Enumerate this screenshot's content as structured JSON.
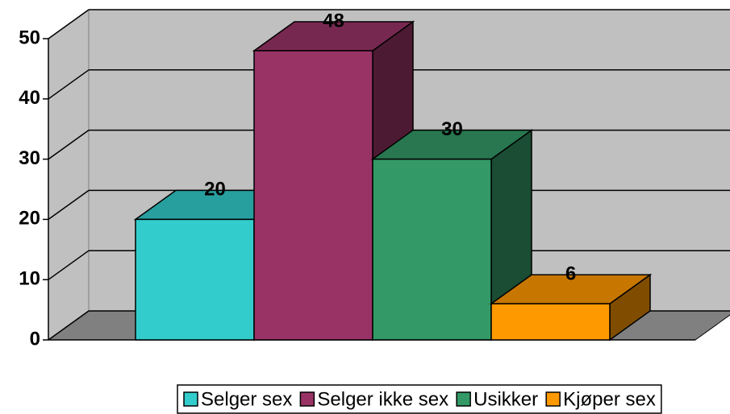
{
  "chart_data": {
    "type": "bar3d",
    "categories": [
      null
    ],
    "series": [
      {
        "name": "Selger sex",
        "color": "#33CCCC",
        "values": [
          20
        ]
      },
      {
        "name": "Selger ikke sex",
        "color": "#993366",
        "values": [
          48
        ]
      },
      {
        "name": "Usikker",
        "color": "#339966",
        "values": [
          30
        ]
      },
      {
        "name": "Kjøper sex",
        "color": "#FF9900",
        "values": [
          6
        ]
      }
    ],
    "ylim": [
      0,
      50
    ],
    "yticks": [
      0,
      10,
      20,
      30,
      40,
      50
    ],
    "grid": true,
    "legend": "bottom"
  }
}
